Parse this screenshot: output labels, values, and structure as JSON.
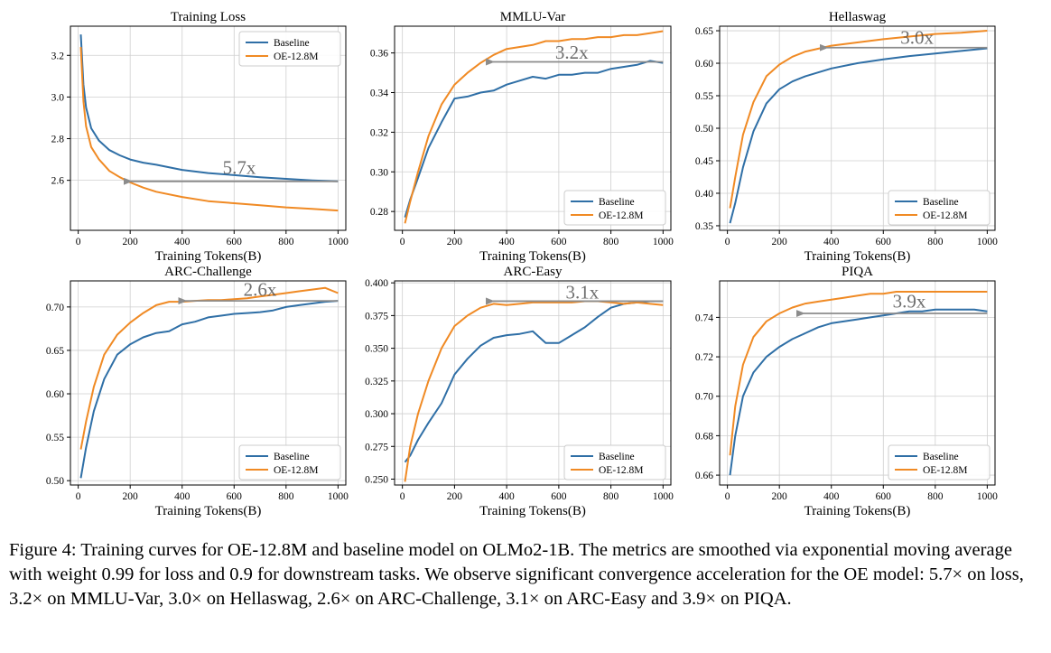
{
  "colors": {
    "baseline": "#2f6fa6",
    "oe": "#f08a24",
    "arrow": "#8c8c8c",
    "grid": "#cfcfcf"
  },
  "chart_data": [
    {
      "type": "line",
      "title": "Training Loss",
      "xlabel": "Training Tokens(B)",
      "ylabel": "",
      "xlim": [
        -30,
        1030
      ],
      "ylim": [
        2.36,
        3.34
      ],
      "xticks": [
        0,
        200,
        400,
        600,
        800,
        1000
      ],
      "yticks": [
        2.6,
        2.8,
        3.0,
        3.2
      ],
      "grid": true,
      "legend_position": "top-right",
      "series": [
        {
          "name": "Baseline",
          "x": [
            10,
            20,
            30,
            50,
            80,
            120,
            160,
            200,
            250,
            300,
            400,
            500,
            600,
            700,
            800,
            900,
            1000
          ],
          "y": [
            3.3,
            3.06,
            2.95,
            2.85,
            2.79,
            2.745,
            2.72,
            2.7,
            2.685,
            2.675,
            2.65,
            2.635,
            2.625,
            2.615,
            2.607,
            2.6,
            2.595
          ]
        },
        {
          "name": "OE-12.8M",
          "x": [
            10,
            20,
            30,
            50,
            80,
            120,
            160,
            200,
            250,
            300,
            400,
            500,
            600,
            700,
            800,
            900,
            1000
          ],
          "y": [
            3.24,
            2.98,
            2.86,
            2.76,
            2.7,
            2.645,
            2.615,
            2.59,
            2.565,
            2.545,
            2.52,
            2.5,
            2.49,
            2.48,
            2.47,
            2.463,
            2.455
          ]
        }
      ],
      "annotation": {
        "text": "5.7x",
        "x": 620,
        "y": 2.63,
        "arrow_from": [
          1000,
          2.595
        ],
        "arrow_to": [
          175,
          2.595
        ]
      }
    },
    {
      "type": "line",
      "title": "MMLU-Var",
      "xlabel": "Training Tokens(B)",
      "ylabel": "",
      "xlim": [
        -30,
        1030
      ],
      "ylim": [
        0.2705,
        0.3735
      ],
      "xticks": [
        0,
        200,
        400,
        600,
        800,
        1000
      ],
      "yticks": [
        0.28,
        0.3,
        0.32,
        0.34,
        0.36
      ],
      "grid": true,
      "legend_position": "bottom-right",
      "series": [
        {
          "name": "Baseline",
          "x": [
            10,
            30,
            60,
            100,
            150,
            200,
            250,
            300,
            350,
            400,
            450,
            500,
            550,
            600,
            650,
            700,
            750,
            800,
            850,
            900,
            950,
            1000
          ],
          "y": [
            0.277,
            0.286,
            0.297,
            0.312,
            0.325,
            0.337,
            0.338,
            0.34,
            0.341,
            0.344,
            0.346,
            0.348,
            0.347,
            0.349,
            0.349,
            0.35,
            0.35,
            0.352,
            0.353,
            0.354,
            0.356,
            0.355
          ]
        },
        {
          "name": "OE-12.8M",
          "x": [
            10,
            30,
            60,
            100,
            150,
            200,
            250,
            300,
            350,
            400,
            450,
            500,
            550,
            600,
            650,
            700,
            750,
            800,
            850,
            900,
            950,
            1000
          ],
          "y": [
            0.274,
            0.285,
            0.3,
            0.318,
            0.334,
            0.344,
            0.35,
            0.355,
            0.359,
            0.362,
            0.363,
            0.364,
            0.366,
            0.366,
            0.367,
            0.367,
            0.368,
            0.368,
            0.369,
            0.369,
            0.37,
            0.371
          ]
        }
      ],
      "annotation": {
        "text": "3.2x",
        "x": 650,
        "y": 0.357,
        "arrow_from": [
          1000,
          0.3555
        ],
        "arrow_to": [
          320,
          0.3555
        ]
      }
    },
    {
      "type": "line",
      "title": "Hellaswag",
      "xlabel": "Training Tokens(B)",
      "ylabel": "",
      "xlim": [
        -30,
        1030
      ],
      "ylim": [
        0.343,
        0.657
      ],
      "xticks": [
        0,
        200,
        400,
        600,
        800,
        1000
      ],
      "yticks": [
        0.35,
        0.4,
        0.45,
        0.5,
        0.55,
        0.6,
        0.65
      ],
      "grid": true,
      "legend_position": "bottom-right",
      "series": [
        {
          "name": "Baseline",
          "x": [
            10,
            30,
            60,
            100,
            150,
            200,
            250,
            300,
            400,
            500,
            600,
            700,
            800,
            900,
            1000
          ],
          "y": [
            0.354,
            0.385,
            0.44,
            0.495,
            0.538,
            0.56,
            0.572,
            0.58,
            0.592,
            0.6,
            0.606,
            0.611,
            0.615,
            0.619,
            0.623
          ]
        },
        {
          "name": "OE-12.8M",
          "x": [
            10,
            30,
            60,
            100,
            150,
            200,
            250,
            300,
            400,
            500,
            600,
            700,
            800,
            900,
            1000
          ],
          "y": [
            0.377,
            0.425,
            0.49,
            0.54,
            0.58,
            0.598,
            0.61,
            0.618,
            0.627,
            0.632,
            0.637,
            0.641,
            0.645,
            0.647,
            0.65
          ]
        }
      ],
      "annotation": {
        "text": "3.0x",
        "x": 730,
        "y": 0.63,
        "arrow_from": [
          1000,
          0.624
        ],
        "arrow_to": [
          355,
          0.624
        ]
      }
    },
    {
      "type": "line",
      "title": "ARC-Challenge",
      "xlabel": "Training Tokens(B)",
      "ylabel": "",
      "xlim": [
        -30,
        1030
      ],
      "ylim": [
        0.495,
        0.73
      ],
      "xticks": [
        0,
        200,
        400,
        600,
        800,
        1000
      ],
      "yticks": [
        0.5,
        0.55,
        0.6,
        0.65,
        0.7
      ],
      "grid": true,
      "legend_position": "bottom-right",
      "series": [
        {
          "name": "Baseline",
          "x": [
            10,
            30,
            60,
            100,
            150,
            200,
            250,
            300,
            350,
            400,
            450,
            500,
            550,
            600,
            650,
            700,
            750,
            800,
            850,
            900,
            950,
            1000
          ],
          "y": [
            0.503,
            0.538,
            0.58,
            0.617,
            0.645,
            0.657,
            0.665,
            0.67,
            0.672,
            0.68,
            0.683,
            0.688,
            0.69,
            0.692,
            0.693,
            0.694,
            0.696,
            0.7,
            0.702,
            0.704,
            0.706,
            0.707
          ]
        },
        {
          "name": "OE-12.8M",
          "x": [
            10,
            30,
            60,
            100,
            150,
            200,
            250,
            300,
            350,
            400,
            450,
            500,
            550,
            600,
            650,
            700,
            750,
            800,
            850,
            900,
            950,
            1000
          ],
          "y": [
            0.536,
            0.568,
            0.608,
            0.645,
            0.668,
            0.682,
            0.693,
            0.702,
            0.706,
            0.706,
            0.707,
            0.708,
            0.708,
            0.709,
            0.71,
            0.712,
            0.714,
            0.716,
            0.718,
            0.72,
            0.722,
            0.716
          ]
        }
      ],
      "annotation": {
        "text": "2.6x",
        "x": 700,
        "y": 0.713,
        "arrow_from": [
          1000,
          0.707
        ],
        "arrow_to": [
          385,
          0.707
        ]
      }
    },
    {
      "type": "line",
      "title": "ARC-Easy",
      "xlabel": "Training Tokens(B)",
      "ylabel": "",
      "xlim": [
        -30,
        1030
      ],
      "ylim": [
        0.2455,
        0.4015
      ],
      "xticks": [
        0,
        200,
        400,
        600,
        800,
        1000
      ],
      "yticks": [
        0.25,
        0.275,
        0.3,
        0.325,
        0.35,
        0.375,
        0.4
      ],
      "grid": true,
      "legend_position": "bottom-right",
      "series": [
        {
          "name": "Baseline",
          "x": [
            10,
            30,
            60,
            100,
            150,
            200,
            250,
            300,
            350,
            400,
            450,
            500,
            550,
            600,
            650,
            700,
            750,
            800,
            850,
            900,
            950,
            1000
          ],
          "y": [
            0.263,
            0.268,
            0.28,
            0.293,
            0.308,
            0.33,
            0.342,
            0.352,
            0.358,
            0.36,
            0.361,
            0.363,
            0.354,
            0.354,
            0.36,
            0.366,
            0.374,
            0.381,
            0.384,
            0.385,
            0.386,
            0.386
          ]
        },
        {
          "name": "OE-12.8M",
          "x": [
            10,
            30,
            60,
            100,
            150,
            200,
            250,
            300,
            350,
            400,
            450,
            500,
            550,
            600,
            650,
            700,
            750,
            800,
            850,
            900,
            950,
            1000
          ],
          "y": [
            0.248,
            0.275,
            0.3,
            0.325,
            0.35,
            0.367,
            0.375,
            0.381,
            0.384,
            0.383,
            0.384,
            0.385,
            0.385,
            0.385,
            0.385,
            0.386,
            0.386,
            0.385,
            0.384,
            0.385,
            0.384,
            0.383
          ]
        }
      ],
      "annotation": {
        "text": "3.1x",
        "x": 690,
        "y": 0.388,
        "arrow_from": [
          1000,
          0.386
        ],
        "arrow_to": [
          320,
          0.386
        ]
      }
    },
    {
      "type": "line",
      "title": "PIQA",
      "xlabel": "Training Tokens(B)",
      "ylabel": "",
      "xlim": [
        -30,
        1030
      ],
      "ylim": [
        0.655,
        0.7585
      ],
      "xticks": [
        0,
        200,
        400,
        600,
        800,
        1000
      ],
      "yticks": [
        0.66,
        0.68,
        0.7,
        0.72,
        0.74
      ],
      "grid": true,
      "legend_position": "bottom-right",
      "series": [
        {
          "name": "Baseline",
          "x": [
            10,
            30,
            60,
            100,
            150,
            200,
            250,
            300,
            350,
            400,
            450,
            500,
            550,
            600,
            650,
            700,
            750,
            800,
            850,
            900,
            950,
            1000
          ],
          "y": [
            0.66,
            0.68,
            0.7,
            0.712,
            0.72,
            0.725,
            0.729,
            0.732,
            0.735,
            0.737,
            0.738,
            0.739,
            0.74,
            0.741,
            0.742,
            0.743,
            0.743,
            0.744,
            0.744,
            0.744,
            0.744,
            0.743
          ]
        },
        {
          "name": "OE-12.8M",
          "x": [
            10,
            30,
            60,
            100,
            150,
            200,
            250,
            300,
            350,
            400,
            450,
            500,
            550,
            600,
            650,
            700,
            750,
            800,
            850,
            900,
            950,
            1000
          ],
          "y": [
            0.67,
            0.695,
            0.716,
            0.73,
            0.738,
            0.742,
            0.745,
            0.747,
            0.748,
            0.749,
            0.75,
            0.751,
            0.752,
            0.752,
            0.753,
            0.753,
            0.753,
            0.753,
            0.753,
            0.753,
            0.753,
            0.753
          ]
        }
      ],
      "annotation": {
        "text": "3.9x",
        "x": 700,
        "y": 0.745,
        "arrow_from": [
          1000,
          0.742
        ],
        "arrow_to": [
          265,
          0.742
        ]
      }
    }
  ],
  "caption": "Figure 4: Training curves for OE-12.8M and baseline model on OLMo2-1B. The metrics are smoothed via exponential moving average with weight 0.99 for loss and 0.9 for downstream tasks. We observe significant convergence acceleration for the OE model: 5.7× on loss, 3.2× on MMLU-Var, 3.0× on Hellaswag, 2.6× on ARC-Challenge, 3.1× on ARC-Easy and 3.9× on PIQA."
}
